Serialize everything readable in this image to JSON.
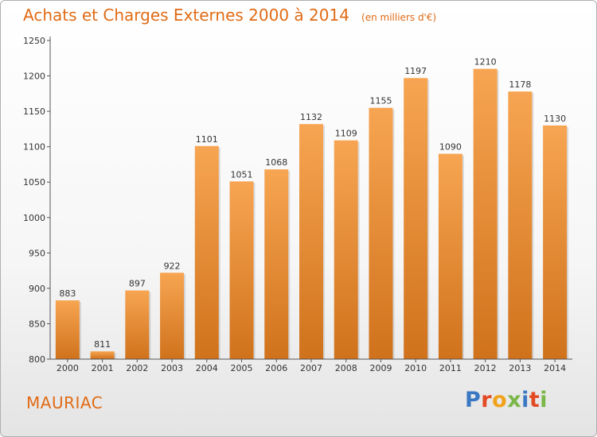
{
  "header": {
    "title": "Achats et Charges Externes 2000 à 2014",
    "subtitle": "(en milliers d'€)"
  },
  "footer": {
    "city": "MAURIAC",
    "logo_text": "Proxiti"
  },
  "colors": {
    "accent": "#e06b15",
    "bar_top": "#f7a552",
    "bar_bottom": "#d0721c",
    "axis": "#555555"
  },
  "chart_data": {
    "type": "bar",
    "title": "Achats et Charges Externes 2000 à 2014",
    "subtitle": "(en milliers d'€)",
    "categories": [
      "2000",
      "2001",
      "2002",
      "2003",
      "2004",
      "2005",
      "2006",
      "2007",
      "2008",
      "2009",
      "2010",
      "2011",
      "2012",
      "2013",
      "2014"
    ],
    "values": [
      883,
      811,
      897,
      922,
      1101,
      1051,
      1068,
      1132,
      1109,
      1155,
      1197,
      1090,
      1210,
      1178,
      1130
    ],
    "ylim": [
      800,
      1250
    ],
    "yticks": [
      800,
      850,
      900,
      950,
      1000,
      1050,
      1100,
      1150,
      1200,
      1250
    ],
    "xlabel": "",
    "ylabel": "",
    "grid": false,
    "data_labels": true
  }
}
